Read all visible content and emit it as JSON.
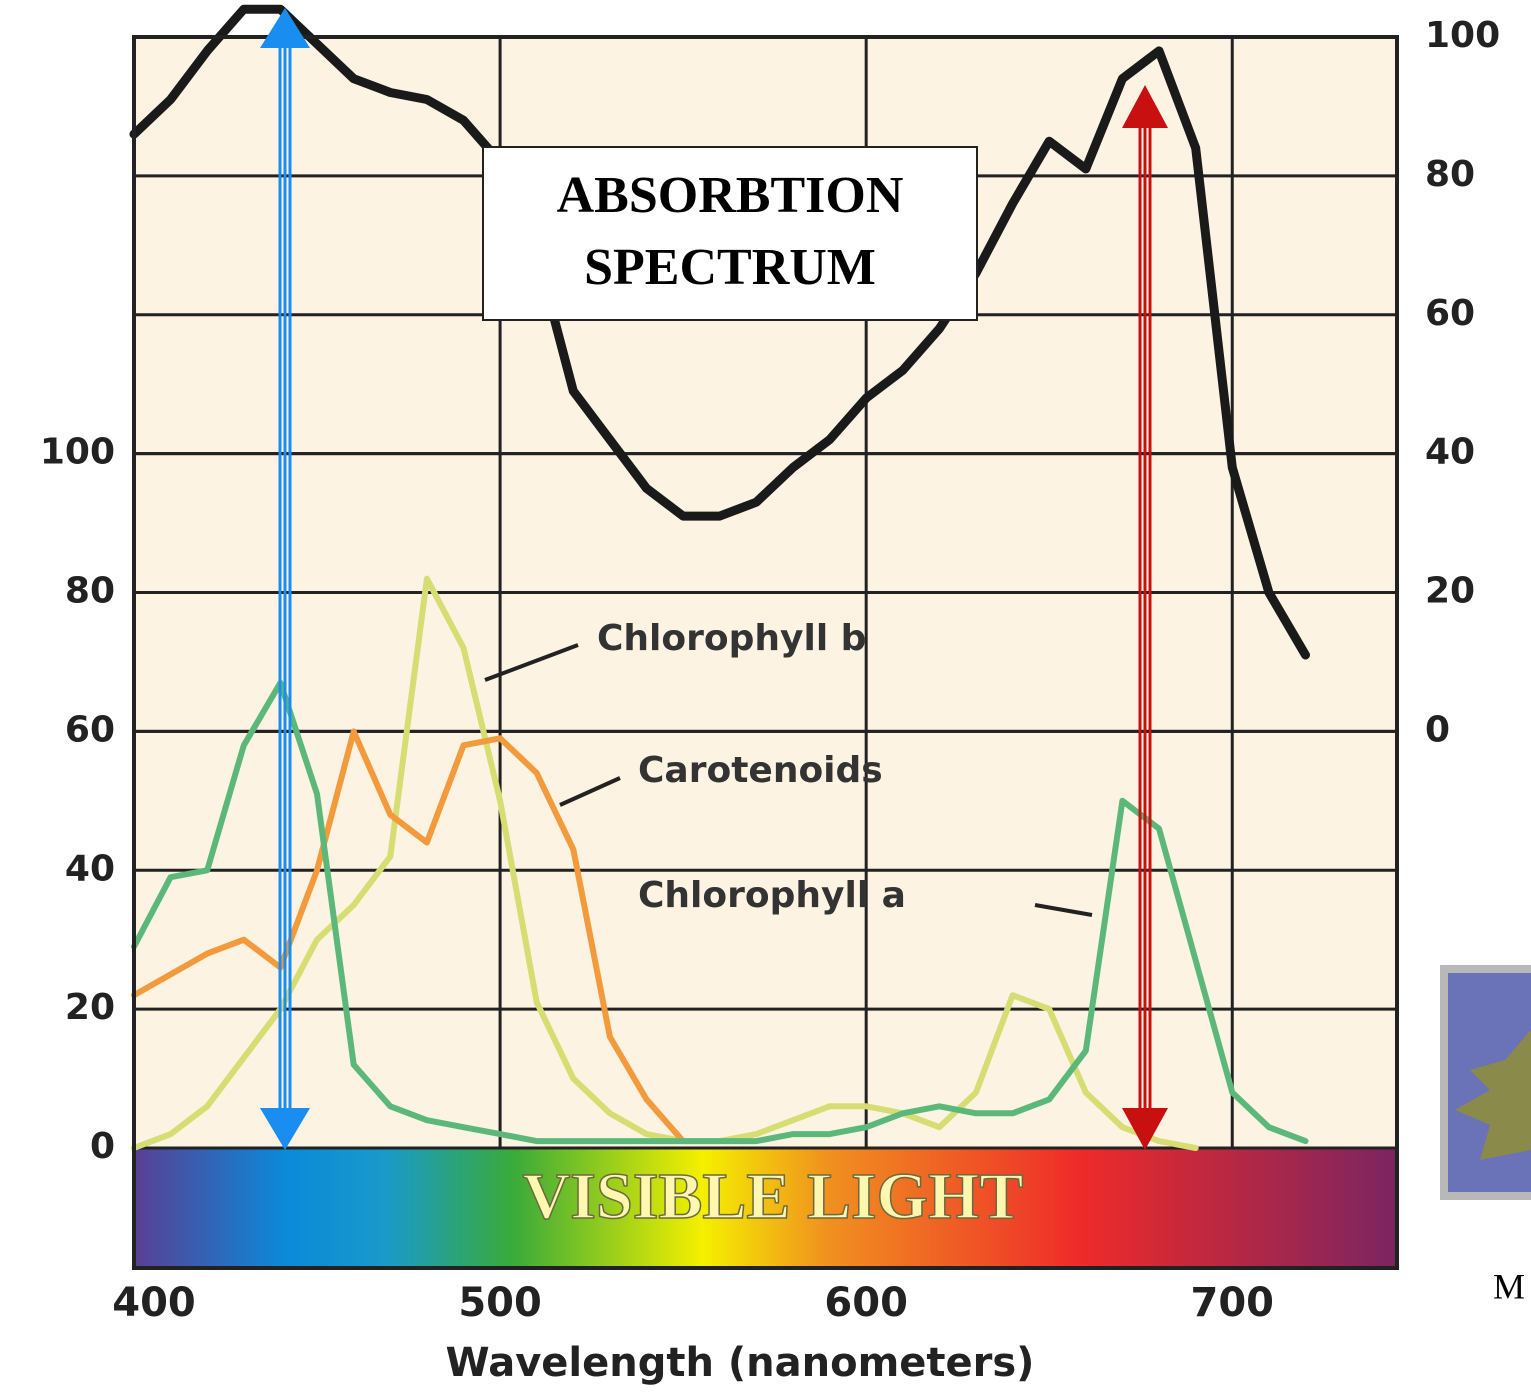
{
  "chart_data": {
    "type": "line",
    "x_label": "Wavelength (nanometers)",
    "x": [
      400,
      410,
      420,
      430,
      440,
      450,
      460,
      470,
      480,
      490,
      500,
      510,
      520,
      530,
      540,
      550,
      560,
      570,
      580,
      590,
      600,
      610,
      620,
      630,
      640,
      650,
      660,
      670,
      680,
      690,
      700,
      710,
      720
    ],
    "xlim": [
      400,
      745
    ],
    "xticks": [
      400,
      500,
      600,
      700
    ],
    "ylim": [
      0,
      160
    ],
    "yticks": [
      0,
      20,
      40,
      60,
      80,
      100
    ],
    "y2lim": [
      -60,
      100
    ],
    "y2ticks": [
      0,
      20,
      40,
      60,
      80,
      100
    ],
    "grid": true,
    "series": [
      {
        "name": "Chlorophyll b",
        "color": "#d6dd72",
        "values": [
          0,
          2,
          6,
          13,
          20,
          30,
          35,
          42,
          82,
          72,
          50,
          21,
          10,
          5,
          2,
          1,
          1,
          2,
          4,
          6,
          6,
          5,
          3,
          8,
          22,
          20,
          8,
          3,
          1,
          0,
          null,
          null,
          null
        ]
      },
      {
        "name": "Carotenoids",
        "color": "#f29a3c",
        "values": [
          22,
          25,
          28,
          30,
          26,
          40,
          60,
          48,
          44,
          58,
          59,
          54,
          43,
          16,
          7,
          1,
          null,
          null,
          null,
          null,
          null,
          null,
          null,
          null,
          null,
          null,
          null,
          null,
          null,
          null,
          null,
          null,
          null
        ]
      },
      {
        "name": "Chlorophyll a",
        "color": "#5cb87a",
        "values": [
          29,
          39,
          40,
          58,
          67,
          51,
          12,
          6,
          4,
          3,
          2,
          1,
          1,
          1,
          1,
          1,
          1,
          1,
          2,
          2,
          3,
          5,
          6,
          5,
          5,
          7,
          14,
          50,
          46,
          27,
          8,
          3,
          1
        ]
      },
      {
        "color": "#1a1a1a",
        "axis": "y2",
        "values": [
          86,
          91,
          98,
          104,
          104,
          99,
          94,
          92,
          91,
          88,
          82,
          69,
          49,
          42,
          35,
          31,
          31,
          33,
          38,
          42,
          48,
          52,
          58,
          66,
          76,
          85,
          81,
          94,
          98,
          84,
          38,
          20,
          11
        ]
      }
    ],
    "annotations": [
      "ABSORBTION",
      "SPECTRUM",
      "VISIBLE LIGHT",
      "M"
    ]
  }
}
